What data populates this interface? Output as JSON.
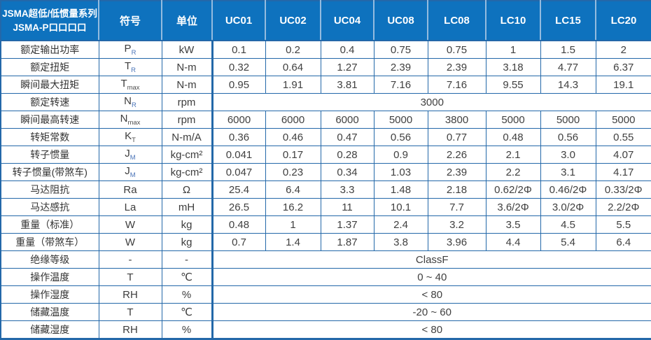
{
  "colors": {
    "header_bg": "#0E72BE",
    "header_divider": "#94BBDF",
    "grid_line": "#2368A9",
    "value_text": "#404040",
    "sub_blue": "#4A74B8",
    "sub_dark": "#4F4F4F"
  },
  "chart_data": {
    "type": "table",
    "title": "JSMA超低/低惯量系列 JSMA-P口口口口 电机规格表",
    "corner_title_line1": "JSMA超低/低惯量系列",
    "corner_title_line2": "JSMA-P口口口口",
    "symbol_header": "符号",
    "unit_header": "单位",
    "models": [
      "UC01",
      "UC02",
      "UC04",
      "UC08",
      "LC08",
      "LC10",
      "LC15",
      "LC20"
    ],
    "rows": [
      {
        "label": "额定输出功率",
        "symbol": {
          "base": "P",
          "sub": "R",
          "sub_tone": "blue"
        },
        "unit": "kW",
        "values": [
          "0.1",
          "0.2",
          "0.4",
          "0.75",
          "0.75",
          "1",
          "1.5",
          "2"
        ]
      },
      {
        "label": "额定扭矩",
        "symbol": {
          "base": "T",
          "sub": "R",
          "sub_tone": "blue"
        },
        "unit": "N-m",
        "values": [
          "0.32",
          "0.64",
          "1.27",
          "2.39",
          "2.39",
          "3.18",
          "4.77",
          "6.37"
        ]
      },
      {
        "label": "瞬间最大扭矩",
        "symbol": {
          "base": "T",
          "sub": "max",
          "sub_tone": "dark"
        },
        "unit": "N-m",
        "values": [
          "0.95",
          "1.91",
          "3.81",
          "7.16",
          "7.16",
          "9.55",
          "14.3",
          "19.1"
        ]
      },
      {
        "label": "额定转速",
        "symbol": {
          "base": "N",
          "sub": "R",
          "sub_tone": "blue"
        },
        "unit": "rpm",
        "merged": "3000"
      },
      {
        "label": "瞬间最高转速",
        "symbol": {
          "base": "N",
          "sub": "max",
          "sub_tone": "dark"
        },
        "unit": "rpm",
        "values": [
          "6000",
          "6000",
          "6000",
          "5000",
          "3800",
          "5000",
          "5000",
          "5000"
        ]
      },
      {
        "label": "转矩常数",
        "symbol": {
          "base": "K",
          "sub": "T",
          "sub_tone": "dark"
        },
        "unit": "N-m/A",
        "values": [
          "0.36",
          "0.46",
          "0.47",
          "0.56",
          "0.77",
          "0.48",
          "0.56",
          "0.55"
        ]
      },
      {
        "label": "转子惯量",
        "symbol": {
          "base": "J",
          "sub": "M",
          "sub_tone": "blue"
        },
        "unit": "kg-cm²",
        "values": [
          "0.041",
          "0.17",
          "0.28",
          "0.9",
          "2.26",
          "2.1",
          "3.0",
          "4.07"
        ]
      },
      {
        "label": "转子惯量(带煞车)",
        "symbol": {
          "base": "J",
          "sub": "M",
          "sub_tone": "blue"
        },
        "unit": "kg-cm²",
        "values": [
          "0.047",
          "0.23",
          "0.34",
          "1.03",
          "2.39",
          "2.2",
          "3.1",
          "4.17"
        ]
      },
      {
        "label": "马达阻抗",
        "symbol": {
          "base": "Ra"
        },
        "unit": "Ω",
        "values": [
          "25.4",
          "6.4",
          "3.3",
          "1.48",
          "2.18",
          "0.62/2Φ",
          "0.46/2Φ",
          "0.33/2Φ"
        ]
      },
      {
        "label": "马达感抗",
        "symbol": {
          "base": "La"
        },
        "unit": "mH",
        "values": [
          "26.5",
          "16.2",
          "11",
          "10.1",
          "7.7",
          "3.6/2Φ",
          "3.0/2Φ",
          "2.2/2Φ"
        ]
      },
      {
        "label": "重量（标准）",
        "symbol": {
          "base": "W"
        },
        "unit": "kg",
        "values": [
          "0.48",
          "1",
          "1.37",
          "2.4",
          "3.2",
          "3.5",
          "4.5",
          "5.5"
        ]
      },
      {
        "label": "重量（带煞车）",
        "symbol": {
          "base": "W"
        },
        "unit": "kg",
        "values": [
          "0.7",
          "1.4",
          "1.87",
          "3.8",
          "3.96",
          "4.4",
          "5.4",
          "6.4"
        ]
      },
      {
        "label": "绝缘等级",
        "symbol": {
          "base": "-"
        },
        "unit": "-",
        "merged": "ClassF"
      },
      {
        "label": "操作温度",
        "symbol": {
          "base": "T"
        },
        "unit": "℃",
        "merged": "0 ~ 40"
      },
      {
        "label": "操作湿度",
        "symbol": {
          "base": "RH"
        },
        "unit": "%",
        "merged": "< 80"
      },
      {
        "label": "储藏温度",
        "symbol": {
          "base": "T"
        },
        "unit": "℃",
        "merged": "-20 ~ 60"
      },
      {
        "label": "储藏湿度",
        "symbol": {
          "base": "RH"
        },
        "unit": "%",
        "merged": "< 80"
      }
    ]
  }
}
